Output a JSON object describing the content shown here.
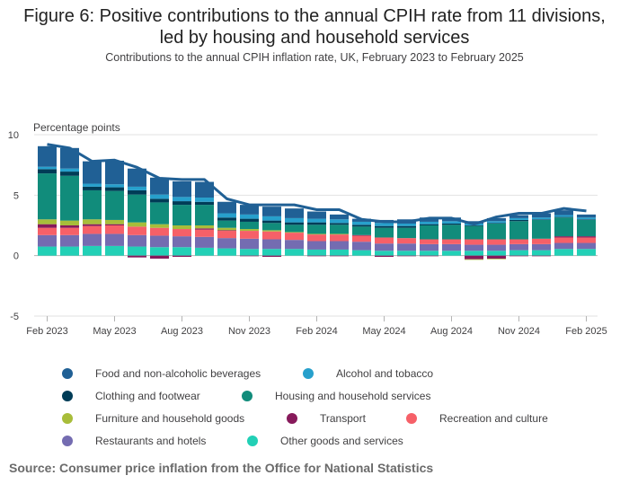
{
  "title_line1": "Figure 6: Positive contributions to the annual CPIH rate from 11 divisions,",
  "title_line2": "led by housing and household services",
  "subtitle": "Contributions to the annual CPIH inflation rate, UK, February 2023 to February 2025",
  "source": "Source: Consumer price inflation from the Office for National Statistics",
  "chart_data": {
    "type": "bar",
    "stacked": true,
    "ylabel": "Percentage points",
    "ylim": [
      -5,
      10
    ],
    "yticks": [
      -5,
      0,
      5,
      10
    ],
    "categories": [
      "Feb 2023",
      "Mar 2023",
      "Apr 2023",
      "May 2023",
      "Jun 2023",
      "Jul 2023",
      "Aug 2023",
      "Sep 2023",
      "Oct 2023",
      "Nov 2023",
      "Dec 2023",
      "Jan 2024",
      "Feb 2024",
      "Mar 2024",
      "Apr 2024",
      "May 2024",
      "Jun 2024",
      "Jul 2024",
      "Aug 2024",
      "Sep 2024",
      "Oct 2024",
      "Nov 2024",
      "Dec 2024",
      "Jan 2025",
      "Feb 2025"
    ],
    "xtick_labels": [
      "Feb 2023",
      "May 2023",
      "Aug 2023",
      "Nov 2023",
      "Feb 2024",
      "May 2024",
      "Aug 2024",
      "Nov 2024",
      "Feb 2025"
    ],
    "series": [
      {
        "name": "Other goods and services",
        "color": "#22d0b6",
        "values": [
          0.75,
          0.75,
          0.8,
          0.8,
          0.75,
          0.7,
          0.7,
          0.65,
          0.6,
          0.55,
          0.55,
          0.55,
          0.5,
          0.5,
          0.45,
          0.4,
          0.4,
          0.4,
          0.4,
          0.4,
          0.4,
          0.45,
          0.45,
          0.55,
          0.55
        ]
      },
      {
        "name": "Restaurants and hotels",
        "color": "#746cb1",
        "values": [
          0.95,
          0.95,
          1.0,
          1.0,
          0.95,
          0.95,
          0.9,
          0.9,
          0.85,
          0.85,
          0.8,
          0.75,
          0.7,
          0.7,
          0.7,
          0.6,
          0.6,
          0.55,
          0.55,
          0.5,
          0.5,
          0.5,
          0.5,
          0.5,
          0.5
        ]
      },
      {
        "name": "Recreation and culture",
        "color": "#f66068",
        "values": [
          0.6,
          0.6,
          0.65,
          0.7,
          0.7,
          0.65,
          0.6,
          0.6,
          0.6,
          0.65,
          0.65,
          0.6,
          0.55,
          0.55,
          0.5,
          0.5,
          0.45,
          0.4,
          0.4,
          0.45,
          0.45,
          0.4,
          0.45,
          0.45,
          0.45
        ]
      },
      {
        "name": "Transport",
        "color": "#871a5b",
        "values": [
          0.3,
          0.2,
          0.15,
          0.1,
          -0.15,
          -0.25,
          -0.1,
          0.1,
          0.05,
          -0.05,
          -0.1,
          0.0,
          -0.05,
          -0.05,
          0.05,
          -0.1,
          -0.05,
          -0.05,
          0.0,
          -0.3,
          -0.25,
          -0.05,
          -0.05,
          0.1,
          0.1
        ]
      },
      {
        "name": "Furniture and household goods",
        "color": "#a8bd3a",
        "values": [
          0.4,
          0.4,
          0.4,
          0.35,
          0.35,
          0.3,
          0.3,
          0.25,
          0.2,
          0.15,
          0.1,
          0.05,
          0.05,
          0.05,
          0.0,
          0.0,
          0.0,
          0.0,
          0.0,
          -0.05,
          -0.05,
          0.0,
          0.0,
          0.0,
          0.0
        ]
      },
      {
        "name": "Housing and household services",
        "color": "#118c7b",
        "values": [
          3.8,
          3.7,
          2.4,
          2.4,
          2.3,
          1.8,
          1.7,
          1.7,
          0.6,
          0.6,
          0.6,
          0.6,
          0.75,
          0.75,
          0.7,
          0.8,
          0.85,
          1.15,
          1.2,
          1.1,
          1.3,
          1.5,
          1.55,
          1.55,
          1.35
        ]
      },
      {
        "name": "Clothing and footwear",
        "color": "#003c57",
        "values": [
          0.35,
          0.35,
          0.3,
          0.3,
          0.35,
          0.3,
          0.3,
          0.25,
          0.25,
          0.25,
          0.2,
          0.2,
          0.2,
          0.15,
          0.15,
          0.15,
          0.15,
          0.1,
          0.1,
          0.05,
          0.05,
          0.1,
          0.05,
          0.05,
          0.05
        ]
      },
      {
        "name": "Alcohol and tobacco",
        "color": "#27a0cc",
        "values": [
          0.2,
          0.25,
          0.25,
          0.25,
          0.3,
          0.35,
          0.35,
          0.35,
          0.35,
          0.35,
          0.35,
          0.35,
          0.3,
          0.3,
          0.25,
          0.25,
          0.2,
          0.2,
          0.2,
          0.15,
          0.15,
          0.15,
          0.15,
          0.15,
          0.15
        ]
      },
      {
        "name": "Food and non-alcoholic beverages",
        "color": "#206095",
        "values": [
          1.7,
          1.7,
          1.85,
          1.95,
          1.5,
          1.4,
          1.3,
          1.3,
          0.95,
          0.8,
          0.8,
          0.8,
          0.6,
          0.4,
          0.25,
          0.25,
          0.35,
          0.35,
          0.3,
          0.2,
          0.25,
          0.25,
          0.35,
          0.4,
          0.25
        ]
      }
    ],
    "line": {
      "name": "CPIH annual rate",
      "color": "#206095",
      "values": [
        9.2,
        8.9,
        7.8,
        7.9,
        7.3,
        6.4,
        6.3,
        6.3,
        4.7,
        4.2,
        4.2,
        4.2,
        3.8,
        3.8,
        3.0,
        2.8,
        2.8,
        3.1,
        3.1,
        2.6,
        3.2,
        3.5,
        3.5,
        3.9,
        3.7
      ]
    }
  },
  "legend": {
    "rows": [
      [
        {
          "label": "Food and non-alcoholic beverages",
          "color": "#206095"
        },
        {
          "label": "Alcohol and tobacco",
          "color": "#27a0cc"
        }
      ],
      [
        {
          "label": "Clothing and footwear",
          "color": "#003c57"
        },
        {
          "label": "Housing and household services",
          "color": "#118c7b"
        }
      ],
      [
        {
          "label": "Furniture and household goods",
          "color": "#a8bd3a"
        },
        {
          "label": "Transport",
          "color": "#871a5b"
        },
        {
          "label": "Recreation and culture",
          "color": "#f66068"
        }
      ],
      [
        {
          "label": "Restaurants and hotels",
          "color": "#746cb1"
        },
        {
          "label": "Other goods and services",
          "color": "#22d0b6"
        }
      ]
    ]
  }
}
